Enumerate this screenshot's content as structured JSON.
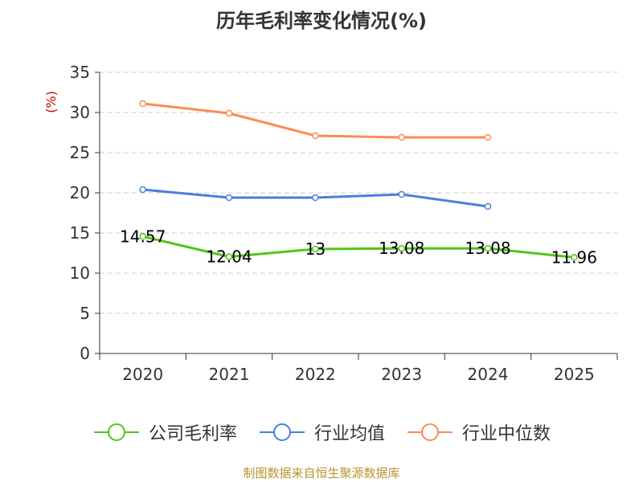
{
  "chart_data": {
    "type": "line",
    "title": "历年毛利率变化情况(%)",
    "ylabel": "(%)",
    "xlabel": "",
    "categories": [
      "2020",
      "2021",
      "2022",
      "2023",
      "2024",
      "2025"
    ],
    "ylim": [
      0,
      35
    ],
    "yticks": [
      0,
      5,
      10,
      15,
      20,
      25,
      30,
      35
    ],
    "grid": true,
    "legend_position": "bottom",
    "series": [
      {
        "name": "公司毛利率",
        "color": "#52c41a",
        "values": [
          14.57,
          12.04,
          13,
          13.08,
          13.08,
          11.96
        ],
        "labels": [
          "14.57",
          "12.04",
          "13",
          "13.08",
          "13.08",
          "11.96"
        ]
      },
      {
        "name": "行业均值",
        "color": "#4a7fdb",
        "values": [
          20.4,
          19.4,
          19.4,
          19.8,
          18.3,
          null
        ]
      },
      {
        "name": "行业中位数",
        "color": "#f98c55",
        "values": [
          31.1,
          29.9,
          27.1,
          26.9,
          26.9,
          null
        ]
      }
    ]
  },
  "source": "制图数据来自恒生聚源数据库"
}
